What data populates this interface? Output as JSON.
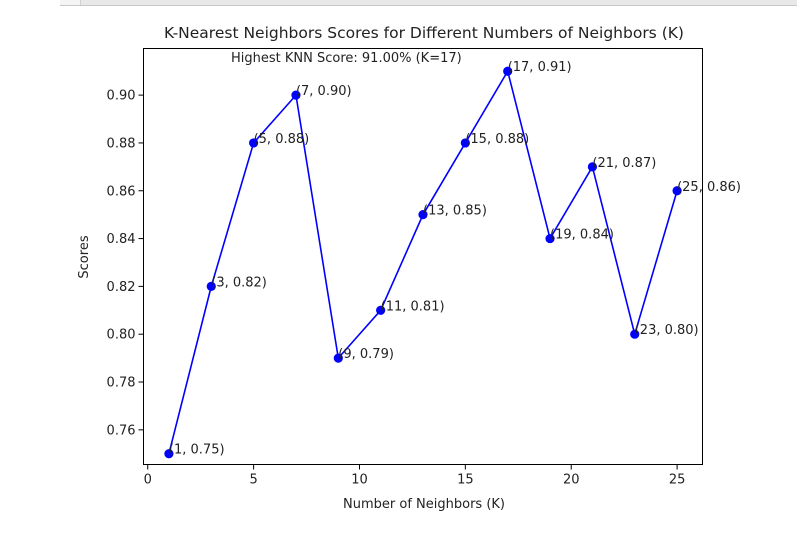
{
  "chart_data": {
    "type": "line",
    "title": "K-Nearest Neighbors Scores for Different Numbers of Neighbors (K)",
    "xlabel": "Number of Neighbors (K)",
    "ylabel": "Scores",
    "xlim": [
      -0.2,
      26.2
    ],
    "ylim": [
      0.7455,
      0.9195
    ],
    "xticks": [
      0,
      5,
      10,
      15,
      20,
      25
    ],
    "xtick_labels": [
      "0",
      "5",
      "10",
      "15",
      "20",
      "25"
    ],
    "yticks": [
      0.76,
      0.78,
      0.8,
      0.82,
      0.84,
      0.86,
      0.88,
      0.9
    ],
    "ytick_labels": [
      "0.76",
      "0.78",
      "0.80",
      "0.82",
      "0.84",
      "0.86",
      "0.88",
      "0.90"
    ],
    "grid": false,
    "series": [
      {
        "color": "#0000ff",
        "marker": "circle",
        "x": [
          1,
          3,
          5,
          7,
          9,
          11,
          13,
          15,
          17,
          19,
          21,
          23,
          25
        ],
        "y": [
          0.75,
          0.82,
          0.88,
          0.9,
          0.79,
          0.81,
          0.85,
          0.88,
          0.91,
          0.84,
          0.87,
          0.8,
          0.86
        ],
        "point_labels": [
          "(1, 0.75)",
          "(3, 0.82)",
          "(5, 0.88)",
          "(7, 0.90)",
          "(9, 0.79)",
          "(11, 0.81)",
          "(13, 0.85)",
          "(15, 0.88)",
          "(17, 0.91)",
          "(19, 0.84)",
          "(21, 0.87)",
          "(23, 0.80)",
          "(25, 0.86)"
        ]
      }
    ],
    "annotations": [
      {
        "text": "Highest KNN Score: 91.00% (K=17)",
        "x": 17,
        "y": 0.91
      }
    ]
  }
}
